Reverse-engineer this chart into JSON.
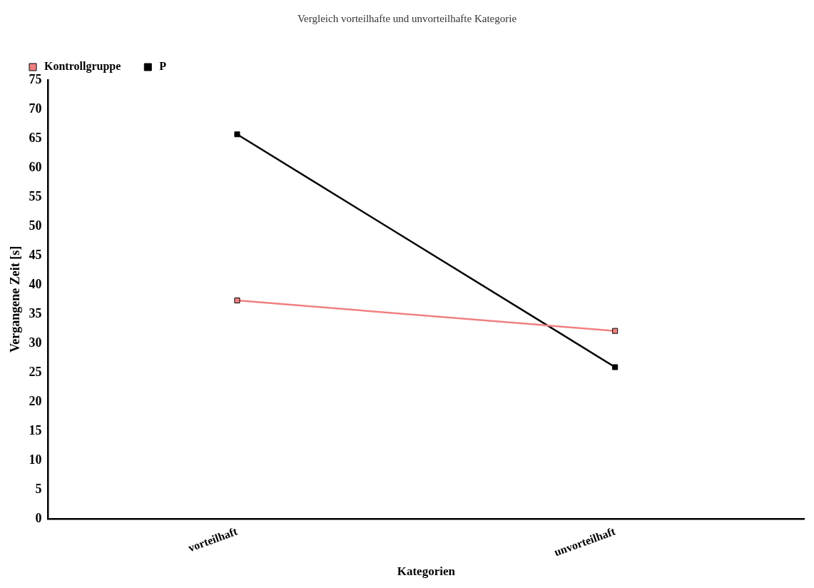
{
  "chart_data": {
    "type": "line",
    "title": "Vergleich vorteilhafte und unvorteilhafte Kategorie",
    "xlabel": "Kategorien",
    "ylabel": "Vergangene Zeit [s]",
    "categories": [
      "vorteilhaft",
      "unvorteilhaft"
    ],
    "series": [
      {
        "name": "Kontrollgruppe",
        "color": "#f08080",
        "values": [
          37.3,
          32.1
        ]
      },
      {
        "name": "P",
        "color": "#000000",
        "values": [
          65.7,
          25.9
        ]
      }
    ],
    "ylim": [
      0,
      75
    ],
    "yticks": [
      0,
      5,
      10,
      15,
      20,
      25,
      30,
      35,
      40,
      45,
      50,
      55,
      60,
      65,
      70,
      75
    ],
    "grid": false,
    "legend": "top left",
    "marker": "square",
    "line_style": "solid"
  }
}
